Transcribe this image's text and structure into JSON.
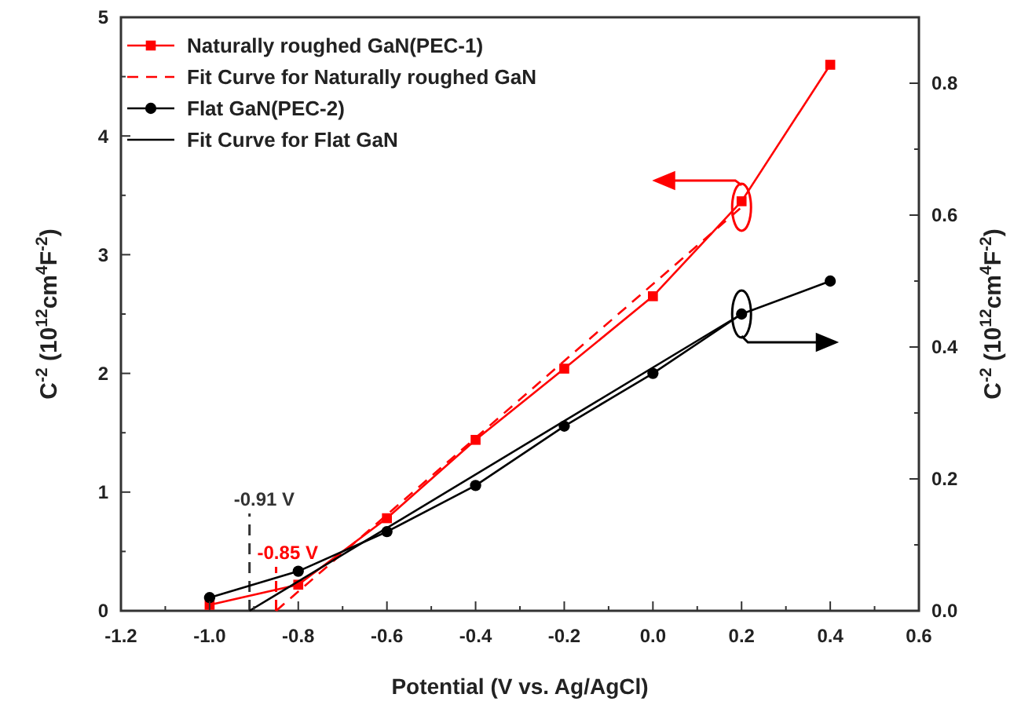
{
  "chart_data": {
    "type": "line",
    "xlabel": "Potential (V vs. Ag/AgCl)",
    "ylabel": "C$^{-2}$ (10$^{12}$cm$^{4}$F$^{-2}$)",
    "y2label": "C$^{-2}$ (10$^{12}$cm$^{4}$F$^{-2}$)",
    "xlim": [
      -1.2,
      0.6
    ],
    "xticks": [
      {
        "value": -1.2,
        "label": "-1.2"
      },
      {
        "value": -1.1,
        "label": null
      },
      {
        "value": -1.0,
        "label": "-1.0"
      },
      {
        "value": -0.9,
        "label": null
      },
      {
        "value": -0.8,
        "label": "-0.8"
      },
      {
        "value": -0.7,
        "label": null
      },
      {
        "value": -0.6,
        "label": "-0.6"
      },
      {
        "value": -0.5,
        "label": null
      },
      {
        "value": -0.4,
        "label": "-0.4"
      },
      {
        "value": -0.3,
        "label": null
      },
      {
        "value": -0.2,
        "label": "-0.2"
      },
      {
        "value": -0.1,
        "label": null
      },
      {
        "value": 0,
        "label": "0.0"
      },
      {
        "value": 0.1,
        "label": null
      },
      {
        "value": 0.2,
        "label": "0.2"
      },
      {
        "value": 0.3,
        "label": null
      },
      {
        "value": 0.4,
        "label": "0.4"
      },
      {
        "value": 0.5,
        "label": null
      },
      {
        "value": 0.6,
        "label": "0.6"
      }
    ],
    "ylim": [
      0,
      5
    ],
    "yticks": [
      0,
      {
        "value": 0.5,
        "label": null
      },
      1,
      {
        "value": 1.5,
        "label": null
      },
      2,
      {
        "value": 2.5,
        "label": null
      },
      3,
      {
        "value": 3.5,
        "label": null
      },
      4,
      {
        "value": 4.5,
        "label": null
      },
      5
    ],
    "y2lim": [
      0,
      0.9
    ],
    "y2ticks": [
      {
        "value": 0,
        "label": "0.0"
      },
      {
        "value": 0.1,
        "label": null
      },
      0.2,
      {
        "value": 0.3,
        "label": null
      },
      0.4,
      {
        "value": 0.5,
        "label": null
      },
      0.6,
      {
        "value": 0.7,
        "label": null
      },
      0.8
    ],
    "legend": "top left",
    "series": [
      {
        "name": "Naturally roughed GaN(PEC-1)",
        "color": "#ff0000",
        "marker": "square",
        "line_style": "solid",
        "x": [
          -1.0,
          -0.8,
          -0.6,
          -0.4,
          -0.2,
          0.0,
          0.2,
          0.4
        ],
        "values": [
          0.05,
          0.22,
          0.78,
          1.44,
          2.04,
          2.65,
          3.45,
          4.6
        ]
      },
      {
        "name": "Fit Curve for Naturally roughed GaN",
        "color": "#ff0000",
        "line_style": "dashed",
        "x": [
          -0.85,
          0.2
        ],
        "values": [
          0,
          3.4
        ]
      },
      {
        "name": "Flat GaN(PEC-2)",
        "color": "#000000",
        "marker": "circle",
        "line_style": "solid",
        "axis": "y2",
        "x": [
          -1.0,
          -0.8,
          -0.6,
          -0.4,
          -0.2,
          0.0,
          0.2,
          0.4
        ],
        "values": [
          0.02,
          0.06,
          0.12,
          0.19,
          0.28,
          0.36,
          0.45,
          0.5
        ]
      },
      {
        "name": "Fit Curve for Flat GaN",
        "color": "#000000",
        "line_style": "solid",
        "axis": "y2",
        "x": [
          -0.91,
          0.2
        ],
        "values": [
          0,
          0.45
        ]
      }
    ],
    "ref_lines": [
      {
        "axis": "x",
        "value": -0.91,
        "label": "-0.91 V",
        "color": "#333333",
        "line_style": "dashed"
      },
      {
        "axis": "x",
        "value": -0.85,
        "label": "-0.85 V",
        "color": "#ff0000",
        "line_style": "dashed"
      }
    ]
  }
}
